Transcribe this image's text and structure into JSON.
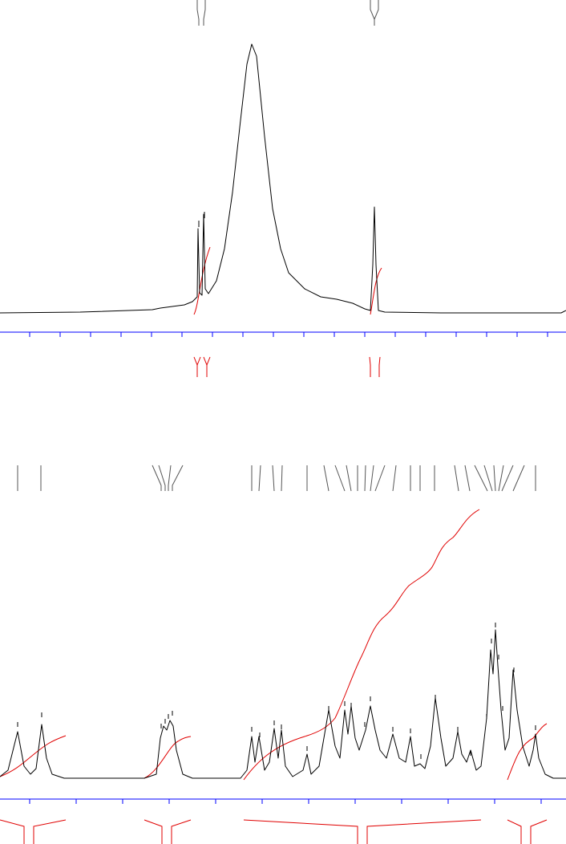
{
  "chart_data": [
    {
      "type": "line",
      "color": "#000000",
      "axis_color": "#0000ff",
      "xlim": [
        0,
        706
      ],
      "ylim": [
        0,
        335
      ],
      "xticks": [
        37,
        75,
        113,
        151,
        189,
        227,
        265,
        303,
        341,
        379,
        417,
        455,
        493,
        531,
        569,
        607,
        645,
        683
      ],
      "x": [
        0,
        100,
        190,
        200,
        230,
        240,
        246,
        247,
        249,
        252,
        254,
        256,
        260,
        270,
        280,
        290,
        300,
        308,
        314,
        320,
        330,
        340,
        350,
        360,
        380,
        400,
        420,
        440,
        455,
        462,
        465,
        467,
        469,
        472,
        480,
        550,
        700,
        706
      ],
      "values": [
        0,
        1,
        4,
        6,
        10,
        14,
        20,
        105,
        25,
        22,
        123,
        30,
        24,
        40,
        80,
        150,
        240,
        310,
        335,
        320,
        220,
        130,
        80,
        50,
        30,
        20,
        17,
        12,
        5,
        3,
        60,
        132,
        60,
        3,
        1,
        0,
        0,
        3
      ]
    },
    {
      "type": "line",
      "color": "#000000",
      "axis_color": "#0000ff",
      "xlim": [
        0,
        706
      ],
      "ylim": [
        0,
        335
      ],
      "xticks": [
        37,
        95,
        153,
        211,
        269,
        327,
        385,
        443,
        501,
        559,
        617,
        675
      ],
      "x": [
        0,
        10,
        22,
        30,
        38,
        45,
        52,
        58,
        65,
        80,
        180,
        195,
        200,
        204,
        208,
        212,
        216,
        220,
        228,
        240,
        300,
        308,
        314,
        318,
        323,
        330,
        336,
        342,
        347,
        351,
        356,
        365,
        378,
        383,
        388,
        398,
        410,
        418,
        424,
        430,
        434,
        438,
        443,
        448,
        456,
        462,
        468,
        474,
        482,
        490,
        498,
        506,
        512,
        517,
        524,
        530,
        537,
        543,
        550,
        556,
        565,
        571,
        576,
        582,
        587,
        594,
        600,
        607,
        612,
        615,
        618,
        621,
        625,
        630,
        635,
        640,
        645,
        652,
        660,
        665,
        668,
        672,
        680,
        690,
        706
      ],
      "values": [
        2,
        10,
        58,
        15,
        5,
        12,
        67,
        25,
        5,
        0,
        0,
        5,
        50,
        65,
        60,
        72,
        65,
        35,
        5,
        0,
        0,
        10,
        52,
        20,
        52,
        10,
        20,
        62,
        25,
        60,
        15,
        2,
        10,
        30,
        5,
        15,
        85,
        40,
        25,
        85,
        55,
        90,
        50,
        35,
        60,
        90,
        60,
        35,
        25,
        55,
        25,
        20,
        52,
        15,
        18,
        12,
        40,
        100,
        50,
        15,
        25,
        58,
        30,
        20,
        35,
        10,
        15,
        75,
        160,
        130,
        185,
        140,
        85,
        35,
        50,
        135,
        85,
        40,
        15,
        35,
        55,
        25,
        5,
        0,
        0
      ]
    }
  ]
}
